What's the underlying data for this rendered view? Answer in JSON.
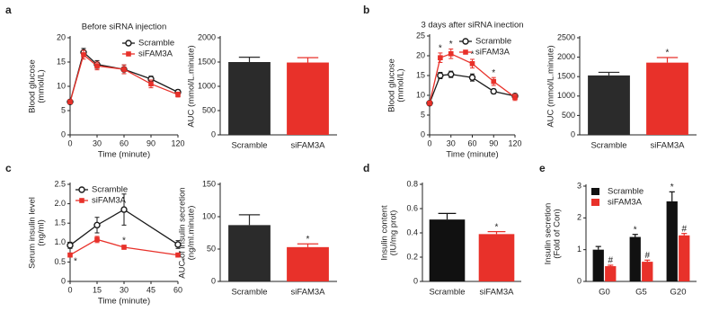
{
  "chart_data": [
    {
      "type": "line",
      "label": "a",
      "title": "Before siRNA injection",
      "xlabel": "Time (minute)",
      "ylabel": [
        "Blood glucose",
        "(mmol/L)"
      ],
      "x": [
        0,
        15,
        30,
        60,
        90,
        120
      ],
      "xlim": [
        0,
        120
      ],
      "xticks": [
        0,
        30,
        60,
        90,
        120
      ],
      "ylim": [
        0,
        20
      ],
      "yticks": [
        0,
        5,
        10,
        15,
        20
      ],
      "legend": "upper right",
      "series": [
        {
          "name": "Scramble",
          "color": "#1a1a1a",
          "marker": "circle",
          "values": [
            6.8,
            17,
            14.5,
            13.5,
            11.5,
            8.8
          ],
          "errors": [
            0.3,
            0.8,
            0.8,
            0.9,
            0.6,
            0.5
          ]
        },
        {
          "name": "siFAM3A",
          "color": "#e8312a",
          "marker": "square",
          "values": [
            6.8,
            16.5,
            14.2,
            13.5,
            10.5,
            8.3
          ],
          "errors": [
            0.3,
            0.9,
            0.8,
            0.9,
            0.8,
            0.5
          ]
        }
      ]
    },
    {
      "type": "bar",
      "ylabel": [
        "AUC (mmol/L.minute)"
      ],
      "categories": [
        "Scramble",
        "siFAM3A"
      ],
      "values": [
        1500,
        1490
      ],
      "errors": [
        100,
        100
      ],
      "colors": [
        "#2b2b2b",
        "#e8312a"
      ],
      "ylim": [
        0,
        2000
      ],
      "yticks": [
        0,
        500,
        1000,
        1500,
        2000
      ]
    },
    {
      "type": "line",
      "label": "b",
      "title": "3 days after siRNA inection",
      "xlabel": "Time (minute)",
      "ylabel": [
        "Blood glucose",
        "(mmol/L)"
      ],
      "x": [
        0,
        15,
        30,
        60,
        90,
        120
      ],
      "xlim": [
        0,
        120
      ],
      "xticks": [
        0,
        30,
        60,
        90,
        120
      ],
      "ylim": [
        0,
        25
      ],
      "yticks": [
        0,
        5,
        10,
        15,
        20,
        25
      ],
      "legend": "upper right",
      "series": [
        {
          "name": "Scramble",
          "color": "#1a1a1a",
          "marker": "circle",
          "values": [
            8,
            15,
            15.3,
            14.5,
            11,
            9.8
          ],
          "errors": [
            0.4,
            0.8,
            0.8,
            0.9,
            0.6,
            0.6
          ]
        },
        {
          "name": "siFAM3A",
          "color": "#e8312a",
          "marker": "square",
          "values": [
            8,
            19.5,
            20.5,
            18,
            13.5,
            9.5
          ],
          "errors": [
            0.4,
            1.2,
            1.2,
            1.1,
            1.0,
            0.8
          ],
          "markers": [
            null,
            "*",
            "*",
            "*",
            "*",
            null
          ]
        }
      ]
    },
    {
      "type": "bar",
      "ylabel": [
        "AUC (mmol/L.minute)"
      ],
      "categories": [
        "Scramble",
        "siFAM3A"
      ],
      "values": [
        1530,
        1860
      ],
      "errors": [
        80,
        130
      ],
      "colors": [
        "#2b2b2b",
        "#e8312a"
      ],
      "markers": [
        null,
        "*"
      ],
      "ylim": [
        0,
        2500
      ],
      "yticks": [
        0,
        500,
        1000,
        1500,
        2000,
        2500
      ]
    },
    {
      "type": "line",
      "label": "c",
      "xlabel": "Time (minute)",
      "ylabel": [
        "Serum insulin level",
        "(ng/ml)"
      ],
      "x": [
        0,
        15,
        30,
        60
      ],
      "xlim": [
        0,
        60
      ],
      "xticks": [
        0,
        15,
        30,
        45,
        60
      ],
      "ylim": [
        0,
        2.5
      ],
      "yticks": [
        0,
        0.5,
        {
          "value": 1,
          "label": "1.0"
        },
        1.5,
        {
          "value": 2,
          "label": "2.0"
        },
        2.5
      ],
      "legend": "upper left",
      "series": [
        {
          "name": "Scramble",
          "color": "#1a1a1a",
          "marker": "circle",
          "values": [
            0.93,
            1.45,
            1.85,
            0.95
          ],
          "errors": [
            0.08,
            0.2,
            0.4,
            0.1
          ]
        },
        {
          "name": "siFAM3A",
          "color": "#e8312a",
          "marker": "square",
          "values": [
            0.68,
            1.08,
            0.88,
            0.68
          ],
          "errors": [
            0.05,
            0.08,
            0.05,
            0.05
          ],
          "markers": [
            "*",
            null,
            "*",
            "*"
          ]
        }
      ]
    },
    {
      "type": "bar",
      "ylabel": [
        "AUC of insulin secretion",
        "(ng/ml.minute)"
      ],
      "categories": [
        "Scramble",
        "siFAM3A"
      ],
      "values": [
        87,
        53
      ],
      "errors": [
        16,
        5
      ],
      "colors": [
        "#2b2b2b",
        "#e8312a"
      ],
      "markers": [
        null,
        "*"
      ],
      "ylim": [
        0,
        150
      ],
      "yticks": [
        0,
        50,
        100,
        150
      ]
    },
    {
      "type": "bar",
      "label": "d",
      "ylabel": [
        "Insulin content",
        "(IU/mg prot)"
      ],
      "categories": [
        "Scramble",
        "siFAM3A"
      ],
      "values": [
        0.51,
        0.39
      ],
      "errors": [
        0.05,
        0.02
      ],
      "colors": [
        "#111111",
        "#e8312a"
      ],
      "markers": [
        null,
        "*"
      ],
      "ylim": [
        0,
        0.8
      ],
      "yticks": [
        0,
        0.2,
        0.4,
        0.6,
        0.8
      ]
    },
    {
      "type": "bar",
      "label": "e",
      "ylabel": [
        "Insulin secretion",
        "(Fold of Con)"
      ],
      "categories": [
        "G0",
        "G5",
        "G20"
      ],
      "ylim": [
        0,
        3
      ],
      "yticks": [
        0,
        1,
        2,
        3
      ],
      "legend": "upper left",
      "series": [
        {
          "name": "Scramble",
          "color": "#111111",
          "values": [
            1.0,
            1.4,
            2.52
          ],
          "errors": [
            0.1,
            0.08,
            0.3
          ],
          "markers": [
            null,
            "*",
            "*"
          ]
        },
        {
          "name": "siFAM3A",
          "color": "#e8312a",
          "values": [
            0.48,
            0.62,
            1.45
          ],
          "errors": [
            0.03,
            0.05,
            0.06
          ],
          "markers": [
            "#",
            "#",
            "#"
          ]
        }
      ]
    }
  ]
}
